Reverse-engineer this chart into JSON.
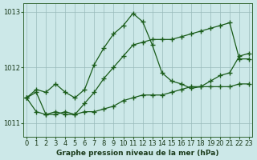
{
  "title": "Graphe pression niveau de la mer (hPa)",
  "background_color": "#cce8e8",
  "grid_color": "#99bbbb",
  "line_color": "#1a5c1a",
  "x_hours": [
    0,
    1,
    2,
    3,
    4,
    5,
    6,
    7,
    8,
    9,
    10,
    11,
    12,
    13,
    14,
    15,
    16,
    17,
    18,
    19,
    20,
    21,
    22,
    23
  ],
  "line_spike": [
    1011.45,
    1011.6,
    1011.55,
    1011.7,
    1011.55,
    1011.45,
    1011.6,
    1012.05,
    1012.35,
    1012.6,
    1012.75,
    1012.97,
    1012.82,
    1012.4,
    1011.9,
    1011.75,
    1011.7,
    1011.62,
    1011.65,
    1011.75,
    1011.85,
    1011.9,
    1012.2,
    1012.25
  ],
  "line_upper": [
    1011.45,
    1011.55,
    1011.15,
    1011.2,
    1011.15,
    1011.15,
    1011.35,
    1011.55,
    1011.8,
    1012.0,
    1012.2,
    1012.4,
    1012.45,
    1012.5,
    1012.5,
    1012.5,
    1012.55,
    1012.6,
    1012.65,
    1012.7,
    1012.75,
    1012.8,
    1012.15,
    1012.15
  ],
  "line_lower": [
    1011.45,
    1011.2,
    1011.15,
    1011.15,
    1011.2,
    1011.15,
    1011.2,
    1011.2,
    1011.25,
    1011.3,
    1011.4,
    1011.45,
    1011.5,
    1011.5,
    1011.5,
    1011.55,
    1011.6,
    1011.65,
    1011.65,
    1011.65,
    1011.65,
    1011.65,
    1011.7,
    1011.7
  ],
  "ylim": [
    1010.75,
    1013.15
  ],
  "yticks": [
    1011,
    1012,
    1013
  ],
  "xlim": [
    -0.3,
    23.3
  ]
}
